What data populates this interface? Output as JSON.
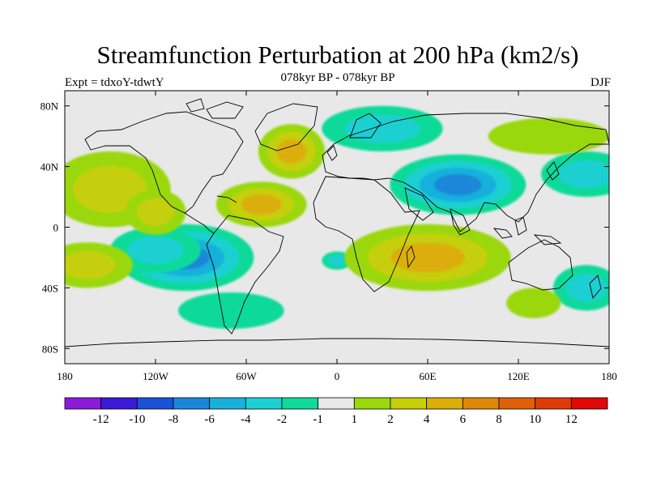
{
  "title": "Streamfunction Perturbation at 200 hPa (km2/s)",
  "subtitle": "078kyr BP - 078kyr BP",
  "experiment": "Expt = tdxoY-tdwtY",
  "season": "DJF",
  "map": {
    "projection": "cylindrical-equidistant",
    "lon_range": [
      -180,
      180
    ],
    "lat_range": [
      -90,
      90
    ],
    "background_color": "#e8e8e8",
    "coastline_color": "#000000",
    "lon_ticks": [
      {
        "value": -180,
        "label": "180"
      },
      {
        "value": -120,
        "label": "120W"
      },
      {
        "value": -60,
        "label": "60W"
      },
      {
        "value": 0,
        "label": "0"
      },
      {
        "value": 60,
        "label": "60E"
      },
      {
        "value": 120,
        "label": "120E"
      },
      {
        "value": 180,
        "label": "180"
      }
    ],
    "lat_ticks": [
      {
        "value": 80,
        "label": "80N"
      },
      {
        "value": 40,
        "label": "40N"
      },
      {
        "value": 0,
        "label": "0"
      },
      {
        "value": -40,
        "label": "40S"
      },
      {
        "value": -80,
        "label": "80S"
      }
    ]
  },
  "colorbar": {
    "colors": [
      "#8a1bd6",
      "#3a1ad6",
      "#1a52d6",
      "#1a86d9",
      "#19b0dc",
      "#1dd0d2",
      "#10da9a",
      "#e8e8e8",
      "#9ad80c",
      "#c6cf08",
      "#dcae08",
      "#e08608",
      "#e06008",
      "#e03a08",
      "#e00808"
    ],
    "labels": [
      "-12",
      "-10",
      "-8",
      "-6",
      "-4",
      "-2",
      "-1",
      "1",
      "2",
      "4",
      "6",
      "8",
      "10",
      "12"
    ]
  },
  "anomalies": [
    {
      "lon": -100,
      "lat": -20,
      "sign": "neg",
      "strength": 4,
      "rx": 45,
      "ry": 22
    },
    {
      "lon": -120,
      "lat": -15,
      "sign": "neg",
      "strength": 2,
      "rx": 30,
      "ry": 15
    },
    {
      "lon": 80,
      "lat": 28,
      "sign": "neg",
      "strength": 4,
      "rx": 45,
      "ry": 20
    },
    {
      "lon": 30,
      "lat": 65,
      "sign": "neg",
      "strength": 2,
      "rx": 40,
      "ry": 15
    },
    {
      "lon": -70,
      "lat": -55,
      "sign": "neg",
      "strength": 1,
      "rx": 35,
      "ry": 12
    },
    {
      "lon": 165,
      "lat": 35,
      "sign": "neg",
      "strength": 2,
      "rx": 30,
      "ry": 15
    },
    {
      "lon": 165,
      "lat": -40,
      "sign": "neg",
      "strength": 2,
      "rx": 22,
      "ry": 15
    },
    {
      "lon": 0,
      "lat": -22,
      "sign": "neg",
      "strength": 2,
      "rx": 10,
      "ry": 6
    },
    {
      "lon": 60,
      "lat": -20,
      "sign": "pos",
      "strength": 3,
      "rx": 55,
      "ry": 22
    },
    {
      "lon": -30,
      "lat": 50,
      "sign": "pos",
      "strength": 3,
      "rx": 22,
      "ry": 18
    },
    {
      "lon": -50,
      "lat": 15,
      "sign": "pos",
      "strength": 3,
      "rx": 30,
      "ry": 15
    },
    {
      "lon": -150,
      "lat": 25,
      "sign": "pos",
      "strength": 2,
      "rx": 40,
      "ry": 25
    },
    {
      "lon": -120,
      "lat": 10,
      "sign": "pos",
      "strength": 2,
      "rx": 20,
      "ry": 15
    },
    {
      "lon": -165,
      "lat": -25,
      "sign": "pos",
      "strength": 2,
      "rx": 30,
      "ry": 15
    },
    {
      "lon": 140,
      "lat": 60,
      "sign": "pos",
      "strength": 1,
      "rx": 40,
      "ry": 12
    },
    {
      "lon": 130,
      "lat": -50,
      "sign": "pos",
      "strength": 1,
      "rx": 18,
      "ry": 10
    }
  ]
}
